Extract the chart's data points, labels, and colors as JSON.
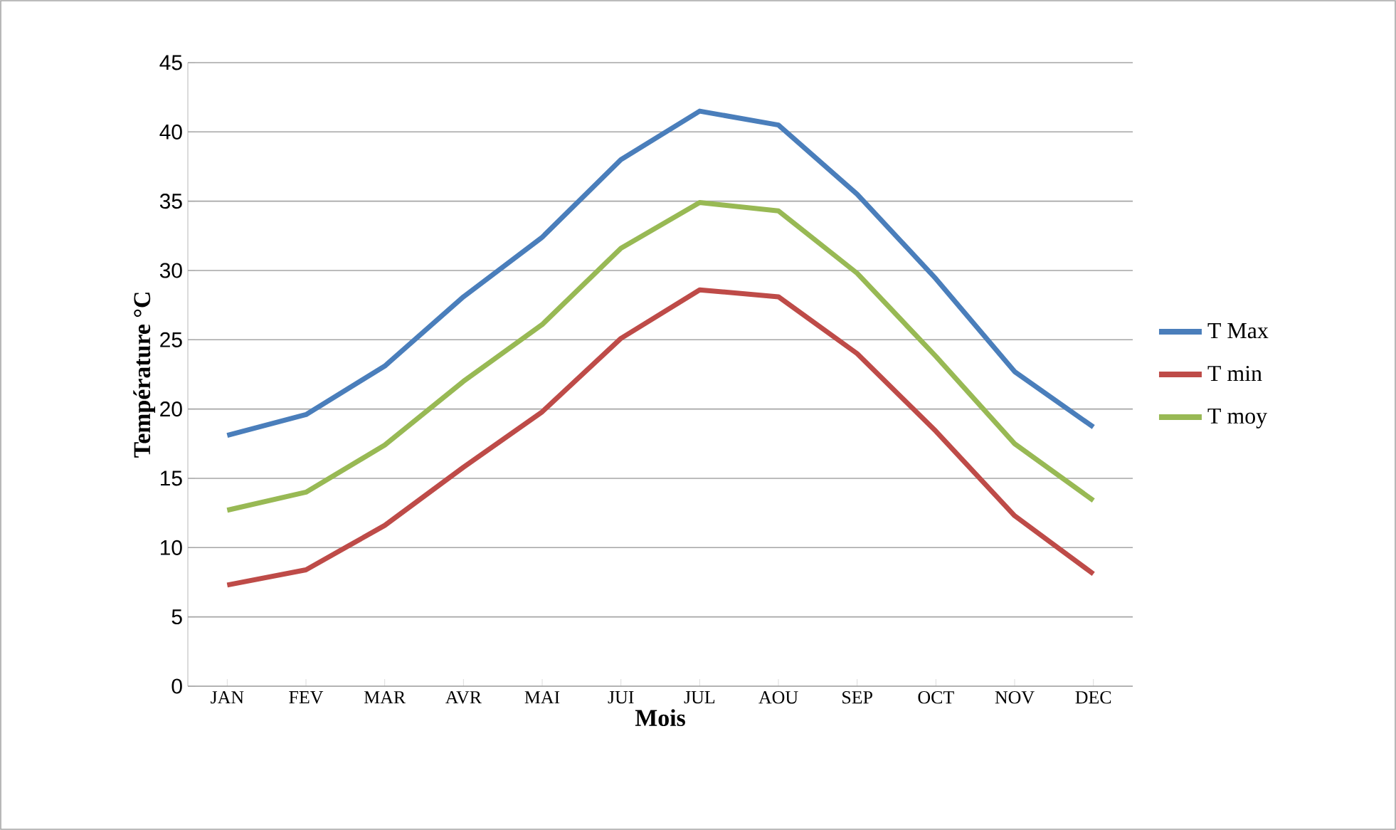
{
  "chart_data": {
    "type": "line",
    "xlabel": "Mois",
    "ylabel": "Température °C",
    "categories": [
      "JAN",
      "FEV",
      "MAR",
      "AVR",
      "MAI",
      "JUI",
      "JUL",
      "AOU",
      "SEP",
      "OCT",
      "NOV",
      "DEC"
    ],
    "series": [
      {
        "name": "T Max",
        "color": "#4a7ebb",
        "values": [
          18.1,
          19.6,
          23.1,
          28.1,
          32.4,
          38,
          41.5,
          40.5,
          35.5,
          29.4,
          22.7,
          18.7
        ]
      },
      {
        "name": "T min",
        "color": "#be4b48",
        "values": [
          7.3,
          8.4,
          11.6,
          15.8,
          19.8,
          25.1,
          28.6,
          28.1,
          24,
          18.4,
          12.3,
          8.1
        ]
      },
      {
        "name": "T moy",
        "color": "#98b954",
        "values": [
          12.7,
          14,
          17.4,
          22,
          26.1,
          31.6,
          34.9,
          34.3,
          29.8,
          23.8,
          17.5,
          13.4
        ]
      }
    ],
    "ylim": [
      0,
      45
    ],
    "yticks": [
      0,
      5,
      10,
      15,
      20,
      25,
      30,
      35,
      40,
      45
    ],
    "grid": "y",
    "legend": "right",
    "marker": "none",
    "line_style": "solid"
  }
}
